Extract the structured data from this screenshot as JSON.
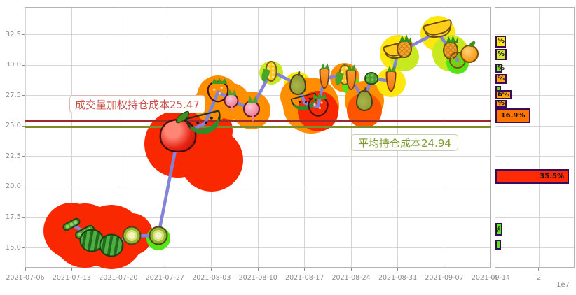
{
  "chart_data": {
    "type": [
      "line",
      "bubble",
      "barh"
    ],
    "main": {
      "type": "line",
      "title": "",
      "xlabel": "",
      "ylabel": "",
      "x_tick_labels": [
        "2021-07-06",
        "2021-07-13",
        "2021-07-20",
        "2021-07-27",
        "2021-08-03",
        "2021-08-10",
        "2021-08-17",
        "2021-08-24",
        "2021-08-31",
        "2021-09-07",
        "2021-09-14"
      ],
      "y_tick_labels": [
        "15.0",
        "17.5",
        "20.0",
        "22.5",
        "25.0",
        "27.5",
        "30.0",
        "32.5"
      ],
      "ylim": [
        13.4,
        34.8
      ],
      "grid": true,
      "line_color": "#8383d9",
      "series": [
        {
          "date": "2021-07-13",
          "price": 16.9,
          "fruit": "pea",
          "s": 0.9
        },
        {
          "date": "2021-07-15",
          "price": 16.3,
          "fruit": "pea",
          "s": 1
        },
        {
          "date": "2021-07-16",
          "price": 15.6,
          "fruit": "watermelon",
          "s": 1
        },
        {
          "date": "2021-07-19",
          "price": 15.2,
          "fruit": "watermelon",
          "s": 1
        },
        {
          "date": "2021-07-22",
          "price": 16.0,
          "fruit": "kiwi",
          "s": 1
        },
        {
          "date": "2021-07-26",
          "price": 16.0,
          "fruit": "kiwi",
          "s": 1
        },
        {
          "date": "2021-07-29",
          "price": 24.2,
          "fruit": "apple",
          "s": 1.2
        },
        {
          "date": "2021-08-02",
          "price": 25.2,
          "fruit": "wslice",
          "s": 1.15
        },
        {
          "date": "2021-08-04",
          "price": 27.8,
          "fruit": "strawberry",
          "s": 1.1
        },
        {
          "date": "2021-08-06",
          "price": 27.1,
          "fruit": "radish",
          "s": 0.95
        },
        {
          "date": "2021-08-09",
          "price": 26.4,
          "fruit": "radish",
          "s": 1.1
        },
        {
          "date": "2021-08-12",
          "price": 29.5,
          "fruit": "corn",
          "s": 1
        },
        {
          "date": "2021-08-16",
          "price": 28.4,
          "fruit": "pear",
          "s": 1
        },
        {
          "date": "2021-08-17",
          "price": 26.9,
          "fruit": "wslice",
          "s": 0.85
        },
        {
          "date": "2021-08-19",
          "price": 26.6,
          "fruit": "strawberry",
          "s": 1.05
        },
        {
          "date": "2021-08-20",
          "price": 28.9,
          "fruit": "carrot",
          "s": 1
        },
        {
          "date": "2021-08-23",
          "price": 29.2,
          "fruit": "corn",
          "s": 1
        },
        {
          "date": "2021-08-24",
          "price": 28.8,
          "fruit": "carrot",
          "s": 1
        },
        {
          "date": "2021-08-26",
          "price": 27.1,
          "fruit": "pear",
          "s": 1
        },
        {
          "date": "2021-08-27",
          "price": 28.9,
          "fruit": "broccoli",
          "s": 0.9
        },
        {
          "date": "2021-08-30",
          "price": 28.7,
          "fruit": "carrot",
          "s": 1
        },
        {
          "date": "2021-08-31",
          "price": 31.0,
          "fruit": "banana",
          "s": 1
        },
        {
          "date": "2021-09-01",
          "price": 31.3,
          "fruit": "pineapple",
          "s": 1
        },
        {
          "date": "2021-09-06",
          "price": 32.7,
          "fruit": "banana",
          "s": 1
        },
        {
          "date": "2021-09-08",
          "price": 31.2,
          "fruit": "pineapple",
          "s": 1
        },
        {
          "date": "2021-09-09",
          "price": 30.4,
          "fruit": "orange",
          "s": 1
        }
      ],
      "bubbles": [
        {
          "date": "2021-07-13",
          "price": 16.4,
          "r": 40,
          "color": "red"
        },
        {
          "date": "2021-07-15",
          "price": 16.0,
          "r": 46,
          "color": "red"
        },
        {
          "date": "2021-07-19",
          "price": 15.9,
          "r": 46,
          "color": "red"
        },
        {
          "date": "2021-07-22",
          "price": 16.1,
          "r": 30,
          "color": "red"
        },
        {
          "date": "2021-07-26",
          "price": 15.8,
          "r": 17,
          "color": "green"
        },
        {
          "date": "2021-07-29",
          "price": 23.5,
          "r": 48,
          "color": "red"
        },
        {
          "date": "2021-08-02",
          "price": 24.6,
          "r": 40,
          "color": "red"
        },
        {
          "date": "2021-08-03",
          "price": 22.2,
          "r": 45,
          "color": "red"
        },
        {
          "date": "2021-08-03",
          "price": 26.8,
          "r": 26,
          "color": "orange"
        },
        {
          "date": "2021-08-04",
          "price": 27.4,
          "r": 30,
          "color": "orange"
        },
        {
          "date": "2021-08-06",
          "price": 27.0,
          "r": 26,
          "color": "orange"
        },
        {
          "date": "2021-08-09",
          "price": 26.3,
          "r": 27,
          "color": "orange"
        },
        {
          "date": "2021-08-12",
          "price": 29.4,
          "r": 17,
          "color": "yellowgreen"
        },
        {
          "date": "2021-08-16",
          "price": 28.3,
          "r": 20,
          "color": "yellow"
        },
        {
          "date": "2021-08-16",
          "price": 27.4,
          "r": 25,
          "color": "orange"
        },
        {
          "date": "2021-08-18",
          "price": 26.7,
          "r": 40,
          "color": "orange"
        },
        {
          "date": "2021-08-19",
          "price": 26.2,
          "r": 29,
          "color": "red"
        },
        {
          "date": "2021-08-23",
          "price": 29.0,
          "r": 21,
          "color": "orange"
        },
        {
          "date": "2021-08-24",
          "price": 28.3,
          "r": 13,
          "color": "green"
        },
        {
          "date": "2021-08-26",
          "price": 27.1,
          "r": 28,
          "color": "orange"
        },
        {
          "date": "2021-08-26",
          "price": 26.3,
          "r": 25,
          "color": "orangered"
        },
        {
          "date": "2021-08-30",
          "price": 28.6,
          "r": 21,
          "color": "yellow"
        },
        {
          "date": "2021-08-31",
          "price": 31.0,
          "r": 26,
          "color": "yellow"
        },
        {
          "date": "2021-09-01",
          "price": 30.7,
          "r": 21,
          "color": "yellowgreen"
        },
        {
          "date": "2021-09-06",
          "price": 32.6,
          "r": 25,
          "color": "yellow"
        },
        {
          "date": "2021-09-08",
          "price": 31.0,
          "r": 26,
          "color": "yellowgreen"
        },
        {
          "date": "2021-09-09",
          "price": 30.2,
          "r": 16,
          "color": "green"
        }
      ],
      "bubble_palette": {
        "red": "#fa2800",
        "orangered": "#ff5500",
        "orange": "#ff8e00",
        "yellow": "#ffe60f",
        "yellowgreen": "#c8e820",
        "green": "#52e414"
      },
      "vwap_line": {
        "label": "成交量加权持仓成本25.47",
        "value": 25.47,
        "color": "#9e2b2b"
      },
      "avg_line": {
        "label": "平均持仓成本24.94",
        "value": 24.94,
        "color": "#7d8c2d"
      }
    },
    "volume_panel": {
      "type": "barh",
      "x_tick_labels": [
        "4",
        "2"
      ],
      "scale_label": "1e7",
      "bars": [
        {
          "price": 32.0,
          "value_e7": 0.49,
          "h": 17,
          "color": "#ffe713",
          "label": "%",
          "label_style": "left"
        },
        {
          "price": 30.9,
          "value_e7": 0.52,
          "h": 16,
          "color": "#cde929",
          "label": "%",
          "label_style": "left"
        },
        {
          "price": 29.8,
          "value_e7": 0.33,
          "h": 13,
          "color": "#79e619",
          "label": "%",
          "label_style": "left"
        },
        {
          "price": 28.9,
          "value_e7": 0.52,
          "h": 14,
          "color": "#ffa70f",
          "label": "%",
          "label_style": "left"
        },
        {
          "price": 28.1,
          "value_e7": 0.26,
          "h": 8,
          "color": "#62e414",
          "label": "",
          "label_style": "none"
        },
        {
          "price": 27.6,
          "value_e7": 0.75,
          "h": 13,
          "color": "#ffa70f",
          "label": "6%",
          "label_style": "left"
        },
        {
          "price": 26.9,
          "value_e7": 0.52,
          "h": 11,
          "color": "#ff9b08",
          "label": "%",
          "label_style": "left"
        },
        {
          "price": 25.9,
          "value_e7": 1.63,
          "h": 21,
          "color": "#ff7301",
          "label": "16.9%",
          "label_style": "center"
        },
        {
          "price": 20.9,
          "value_e7": 3.42,
          "h": 21,
          "color": "#ff2b06",
          "label": "35.5%",
          "label_style": "right"
        },
        {
          "price": 16.6,
          "value_e7": 0.33,
          "h": 18,
          "color": "#55e80e",
          "label": "%",
          "label_style": "rotated"
        },
        {
          "price": 15.3,
          "value_e7": 0.26,
          "h": 14,
          "color": "#55e80e",
          "label": "",
          "label_style": "none"
        }
      ]
    }
  }
}
